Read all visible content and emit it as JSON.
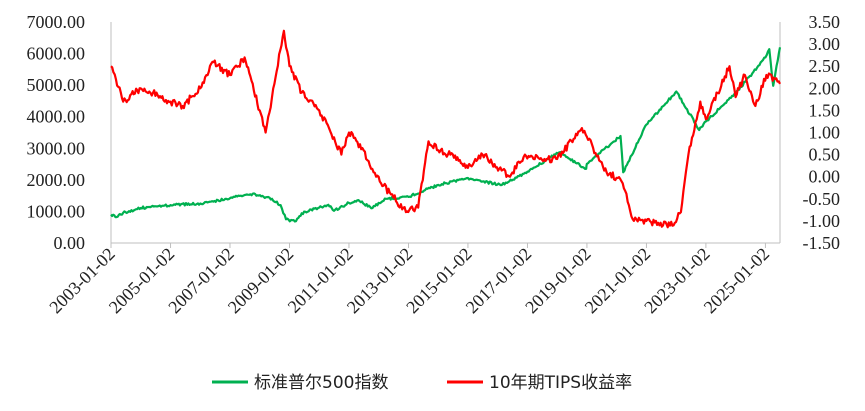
{
  "chart_data": {
    "type": "line",
    "left_axis": {
      "range": [
        0,
        7000
      ],
      "ticks": [
        "0.00",
        "1000.00",
        "2000.00",
        "3000.00",
        "4000.00",
        "5000.00",
        "6000.00",
        "7000.00"
      ]
    },
    "right_axis": {
      "range": [
        -1.5,
        3.5
      ],
      "ticks": [
        "3.50",
        "3.00",
        "2.50",
        "2.00",
        "1.50",
        "1.00",
        "0.50",
        "0.00",
        "-0.50",
        "-1.00",
        "-1.50"
      ]
    },
    "x_axis": {
      "range": [
        "2003-01-02",
        "2025-06-30"
      ],
      "ticks": [
        "2003-01-02",
        "2005-01-02",
        "2007-01-02",
        "2009-01-02",
        "2011-01-02",
        "2013-01-02",
        "2015-01-02",
        "2017-01-02",
        "2019-01-02",
        "2021-01-02",
        "2023-01-02",
        "2025-01-02"
      ]
    },
    "grid": false,
    "legend_position": "bottom",
    "series": [
      {
        "name": "标准普尔500指数",
        "axis": "left",
        "color": "#00b050",
        "points": [
          [
            "2003-01-02",
            900
          ],
          [
            "2003-03-11",
            820
          ],
          [
            "2003-06-01",
            960
          ],
          [
            "2004-01-02",
            1110
          ],
          [
            "2005-01-02",
            1200
          ],
          [
            "2006-01-02",
            1250
          ],
          [
            "2007-01-02",
            1420
          ],
          [
            "2007-10-09",
            1560
          ],
          [
            "2008-06-01",
            1400
          ],
          [
            "2008-09-15",
            1200
          ],
          [
            "2008-11-20",
            750
          ],
          [
            "2009-03-09",
            680
          ],
          [
            "2009-06-01",
            940
          ],
          [
            "2010-01-02",
            1120
          ],
          [
            "2010-04-23",
            1210
          ],
          [
            "2010-07-02",
            1020
          ],
          [
            "2011-01-02",
            1270
          ],
          [
            "2011-04-29",
            1360
          ],
          [
            "2011-10-03",
            1100
          ],
          [
            "2012-04-01",
            1400
          ],
          [
            "2013-01-02",
            1460
          ],
          [
            "2014-01-02",
            1840
          ],
          [
            "2015-01-02",
            2060
          ],
          [
            "2016-02-11",
            1830
          ],
          [
            "2017-01-02",
            2260
          ],
          [
            "2018-01-26",
            2870
          ],
          [
            "2018-12-24",
            2350
          ],
          [
            "2019-01-02",
            2510
          ],
          [
            "2020-02-19",
            3390
          ],
          [
            "2020-03-23",
            2240
          ],
          [
            "2021-01-02",
            3750
          ],
          [
            "2022-01-03",
            4800
          ],
          [
            "2022-10-12",
            3580
          ],
          [
            "2023-01-02",
            3850
          ],
          [
            "2024-01-02",
            4740
          ],
          [
            "2025-01-02",
            5880
          ],
          [
            "2025-02-19",
            6140
          ],
          [
            "2025-04-08",
            4980
          ],
          [
            "2025-06-30",
            6200
          ]
        ]
      },
      {
        "name": "10年期TIPS收益率",
        "axis": "right",
        "color": "#ff0000",
        "points": [
          [
            "2003-01-02",
            2.5
          ],
          [
            "2003-06-01",
            1.7
          ],
          [
            "2004-01-02",
            2.0
          ],
          [
            "2004-06-01",
            1.9
          ],
          [
            "2005-01-02",
            1.7
          ],
          [
            "2005-06-01",
            1.6
          ],
          [
            "2006-01-02",
            2.0
          ],
          [
            "2006-06-01",
            2.6
          ],
          [
            "2007-01-02",
            2.3
          ],
          [
            "2007-07-01",
            2.7
          ],
          [
            "2008-01-02",
            1.5
          ],
          [
            "2008-03-15",
            1.0
          ],
          [
            "2008-06-01",
            1.8
          ],
          [
            "2008-10-25",
            3.3
          ],
          [
            "2009-01-02",
            2.5
          ],
          [
            "2009-06-01",
            1.9
          ],
          [
            "2010-01-02",
            1.5
          ],
          [
            "2010-10-01",
            0.5
          ],
          [
            "2011-01-02",
            1.0
          ],
          [
            "2011-07-01",
            0.6
          ],
          [
            "2011-12-01",
            0.0
          ],
          [
            "2012-06-01",
            -0.4
          ],
          [
            "2012-12-01",
            -0.8
          ],
          [
            "2013-05-01",
            -0.7
          ],
          [
            "2013-09-05",
            0.8
          ],
          [
            "2014-01-02",
            0.6
          ],
          [
            "2014-06-01",
            0.5
          ],
          [
            "2015-01-02",
            0.2
          ],
          [
            "2015-07-01",
            0.5
          ],
          [
            "2016-06-01",
            0.0
          ],
          [
            "2016-12-01",
            0.5
          ],
          [
            "2017-06-01",
            0.4
          ],
          [
            "2018-01-02",
            0.4
          ],
          [
            "2018-11-01",
            1.1
          ],
          [
            "2019-01-02",
            0.9
          ],
          [
            "2019-09-01",
            0.1
          ],
          [
            "2020-03-01",
            -0.1
          ],
          [
            "2020-08-01",
            -1.0
          ],
          [
            "2021-01-02",
            -1.0
          ],
          [
            "2021-12-01",
            -1.1
          ],
          [
            "2022-03-01",
            -0.8
          ],
          [
            "2022-06-01",
            0.5
          ],
          [
            "2022-10-25",
            1.7
          ],
          [
            "2023-01-02",
            1.3
          ],
          [
            "2023-10-19",
            2.5
          ],
          [
            "2024-01-02",
            1.8
          ],
          [
            "2024-04-25",
            2.3
          ],
          [
            "2024-09-01",
            1.6
          ],
          [
            "2025-01-14",
            2.3
          ],
          [
            "2025-06-30",
            2.1
          ]
        ]
      }
    ]
  }
}
